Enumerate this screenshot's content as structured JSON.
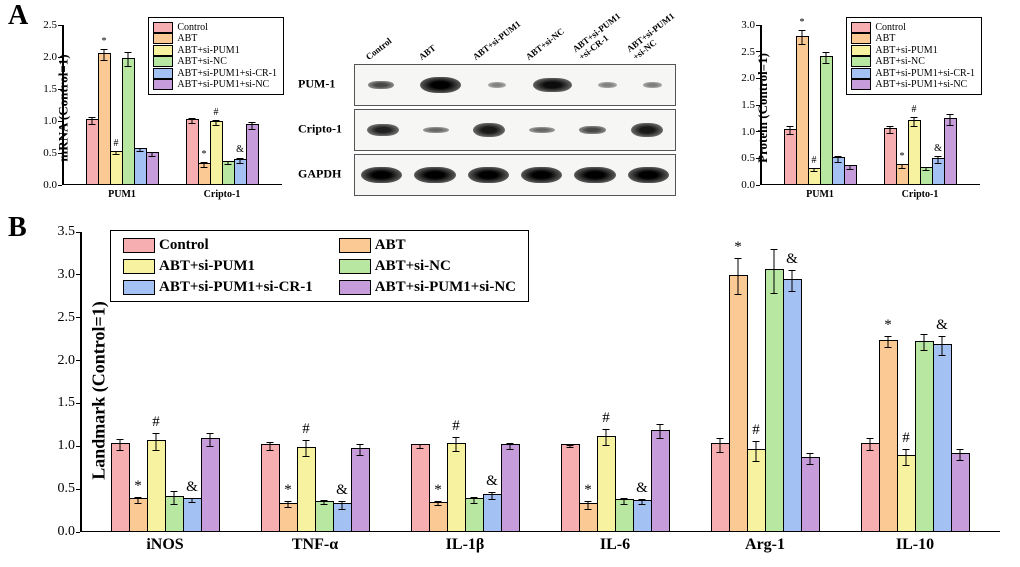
{
  "colors": {
    "control": "#f7aeb1",
    "abt": "#fbc993",
    "abt_si_pum1": "#f6f29f",
    "abt_si_nc": "#b7e7a0",
    "abt_si_pum1_si_cr1": "#a4c1f4",
    "abt_si_pum1_si_nc": "#c69cda",
    "axis": "#000000",
    "bg": "#ffffff"
  },
  "series_legend": {
    "control": "Control",
    "abt": "ABT",
    "abt_si_pum1": "ABT+si-PUM1",
    "abt_si_nc": "ABT+si-NC",
    "abt_si_pum1_si_cr1": "ABT+si-PUM1+si-CR-1",
    "abt_si_pum1_si_nc": "ABT+si-PUM1+si-NC"
  },
  "panelA": {
    "label": "A",
    "left_chart": {
      "y_axis_title": "mRNA (Control=1)",
      "ylim": [
        0,
        2.5
      ],
      "ytick_step": 0.5,
      "label_fontsize": 13,
      "tick_fontsize": 11,
      "groups": [
        {
          "name": "PUM1",
          "bars": [
            {
              "key": "control",
              "value": 1.0,
              "err": 0.07,
              "mark": ""
            },
            {
              "key": "abt",
              "value": 2.03,
              "err": 0.1,
              "mark": "*"
            },
            {
              "key": "abt_si_pum1",
              "value": 0.5,
              "err": 0.03,
              "mark": "#"
            },
            {
              "key": "abt_si_nc",
              "value": 1.96,
              "err": 0.12,
              "mark": ""
            },
            {
              "key": "abt_si_pum1_si_cr1",
              "value": 0.55,
              "err": 0.03,
              "mark": ""
            },
            {
              "key": "abt_si_pum1_si_nc",
              "value": 0.48,
              "err": 0.04,
              "mark": ""
            }
          ]
        },
        {
          "name": "Cripto-1",
          "bars": [
            {
              "key": "control",
              "value": 1.0,
              "err": 0.05,
              "mark": ""
            },
            {
              "key": "abt",
              "value": 0.31,
              "err": 0.05,
              "mark": "*"
            },
            {
              "key": "abt_si_pum1",
              "value": 0.97,
              "err": 0.05,
              "mark": "#"
            },
            {
              "key": "abt_si_nc",
              "value": 0.35,
              "err": 0.03,
              "mark": ""
            },
            {
              "key": "abt_si_pum1_si_cr1",
              "value": 0.38,
              "err": 0.05,
              "mark": "&"
            },
            {
              "key": "abt_si_pum1_si_nc",
              "value": 0.92,
              "err": 0.06,
              "mark": ""
            }
          ]
        }
      ]
    },
    "right_chart": {
      "y_axis_title": "Protein (Control=1)",
      "ylim": [
        0,
        3.0
      ],
      "ytick_step": 0.5,
      "label_fontsize": 13,
      "tick_fontsize": 11,
      "groups": [
        {
          "name": "PUM1",
          "bars": [
            {
              "key": "control",
              "value": 1.02,
              "err": 0.09,
              "mark": ""
            },
            {
              "key": "abt",
              "value": 2.76,
              "err": 0.14,
              "mark": "*"
            },
            {
              "key": "abt_si_pum1",
              "value": 0.28,
              "err": 0.04,
              "mark": "#"
            },
            {
              "key": "abt_si_nc",
              "value": 2.38,
              "err": 0.12,
              "mark": ""
            },
            {
              "key": "abt_si_pum1_si_cr1",
              "value": 0.48,
              "err": 0.07,
              "mark": ""
            },
            {
              "key": "abt_si_pum1_si_nc",
              "value": 0.33,
              "err": 0.04,
              "mark": ""
            }
          ]
        },
        {
          "name": "Cripto-1",
          "bars": [
            {
              "key": "control",
              "value": 1.03,
              "err": 0.08,
              "mark": ""
            },
            {
              "key": "abt",
              "value": 0.35,
              "err": 0.05,
              "mark": "*"
            },
            {
              "key": "abt_si_pum1",
              "value": 1.18,
              "err": 0.09,
              "mark": "#"
            },
            {
              "key": "abt_si_nc",
              "value": 0.3,
              "err": 0.03,
              "mark": ""
            },
            {
              "key": "abt_si_pum1_si_cr1",
              "value": 0.47,
              "err": 0.07,
              "mark": "&"
            },
            {
              "key": "abt_si_pum1_si_nc",
              "value": 1.22,
              "err": 0.11,
              "mark": ""
            }
          ]
        }
      ]
    },
    "western_blot": {
      "lanes": [
        "Control",
        "ABT",
        "ABT+si-PUM1",
        "ABT+si-NC",
        "ABT+si-PUM1\n+si-CR-1",
        "ABT+si-PUM1\n+si-NC"
      ],
      "rows": [
        {
          "name": "PUM-1",
          "intensities": [
            0.55,
            1.0,
            0.18,
            0.92,
            0.2,
            0.22
          ],
          "widths": [
            0.55,
            0.9,
            0.4,
            0.85,
            0.4,
            0.4
          ]
        },
        {
          "name": "Cripto-1",
          "intensities": [
            0.8,
            0.35,
            0.85,
            0.35,
            0.55,
            0.85
          ],
          "widths": [
            0.7,
            0.55,
            0.7,
            0.55,
            0.6,
            0.7
          ]
        },
        {
          "name": "GAPDH",
          "intensities": [
            1.0,
            1.0,
            1.0,
            1.0,
            1.0,
            1.0
          ],
          "widths": [
            0.9,
            0.9,
            0.9,
            0.9,
            0.9,
            0.9
          ]
        }
      ]
    }
  },
  "panelB": {
    "label": "B",
    "y_axis_title": "Landmark (Control=1)",
    "ylim": [
      0,
      3.5
    ],
    "ytick_step": 0.5,
    "label_fontsize": 18,
    "tick_fontsize": 14,
    "groups": [
      {
        "name": "iNOS",
        "bars": [
          {
            "key": "control",
            "value": 1.01,
            "err": 0.07,
            "mark": ""
          },
          {
            "key": "abt",
            "value": 0.37,
            "err": 0.04,
            "mark": "*"
          },
          {
            "key": "abt_si_pum1",
            "value": 1.05,
            "err": 0.1,
            "mark": "#"
          },
          {
            "key": "abt_si_nc",
            "value": 0.4,
            "err": 0.08,
            "mark": ""
          },
          {
            "key": "abt_si_pum1_si_cr1",
            "value": 0.37,
            "err": 0.03,
            "mark": "&"
          },
          {
            "key": "abt_si_pum1_si_nc",
            "value": 1.07,
            "err": 0.08,
            "mark": ""
          }
        ]
      },
      {
        "name": "TNF-α",
        "bars": [
          {
            "key": "control",
            "value": 1.0,
            "err": 0.05,
            "mark": ""
          },
          {
            "key": "abt",
            "value": 0.32,
            "err": 0.04,
            "mark": "*"
          },
          {
            "key": "abt_si_pum1",
            "value": 0.97,
            "err": 0.1,
            "mark": "#"
          },
          {
            "key": "abt_si_nc",
            "value": 0.34,
            "err": 0.03,
            "mark": ""
          },
          {
            "key": "abt_si_pum1_si_cr1",
            "value": 0.31,
            "err": 0.05,
            "mark": "&"
          },
          {
            "key": "abt_si_pum1_si_nc",
            "value": 0.96,
            "err": 0.07,
            "mark": ""
          }
        ]
      },
      {
        "name": "IL-1β",
        "bars": [
          {
            "key": "control",
            "value": 1.0,
            "err": 0.03,
            "mark": ""
          },
          {
            "key": "abt",
            "value": 0.33,
            "err": 0.03,
            "mark": "*"
          },
          {
            "key": "abt_si_pum1",
            "value": 1.02,
            "err": 0.09,
            "mark": "#"
          },
          {
            "key": "abt_si_nc",
            "value": 0.37,
            "err": 0.04,
            "mark": ""
          },
          {
            "key": "abt_si_pum1_si_cr1",
            "value": 0.42,
            "err": 0.05,
            "mark": "&"
          },
          {
            "key": "abt_si_pum1_si_nc",
            "value": 1.0,
            "err": 0.04,
            "mark": ""
          }
        ]
      },
      {
        "name": "IL-6",
        "bars": [
          {
            "key": "control",
            "value": 1.0,
            "err": 0.02,
            "mark": ""
          },
          {
            "key": "abt",
            "value": 0.31,
            "err": 0.05,
            "mark": "*"
          },
          {
            "key": "abt_si_pum1",
            "value": 1.1,
            "err": 0.1,
            "mark": "#"
          },
          {
            "key": "abt_si_nc",
            "value": 0.36,
            "err": 0.04,
            "mark": ""
          },
          {
            "key": "abt_si_pum1_si_cr1",
            "value": 0.35,
            "err": 0.04,
            "mark": "&"
          },
          {
            "key": "abt_si_pum1_si_nc",
            "value": 1.17,
            "err": 0.09,
            "mark": ""
          }
        ]
      },
      {
        "name": "Arg-1",
        "bars": [
          {
            "key": "control",
            "value": 1.01,
            "err": 0.09,
            "mark": ""
          },
          {
            "key": "abt",
            "value": 2.98,
            "err": 0.22,
            "mark": "*"
          },
          {
            "key": "abt_si_pum1",
            "value": 0.94,
            "err": 0.12,
            "mark": "#"
          },
          {
            "key": "abt_si_nc",
            "value": 3.04,
            "err": 0.26,
            "mark": ""
          },
          {
            "key": "abt_si_pum1_si_cr1",
            "value": 2.93,
            "err": 0.13,
            "mark": "&"
          },
          {
            "key": "abt_si_pum1_si_nc",
            "value": 0.85,
            "err": 0.07,
            "mark": ""
          }
        ]
      },
      {
        "name": "IL-10",
        "bars": [
          {
            "key": "control",
            "value": 1.02,
            "err": 0.08,
            "mark": ""
          },
          {
            "key": "abt",
            "value": 2.22,
            "err": 0.07,
            "mark": "*"
          },
          {
            "key": "abt_si_pum1",
            "value": 0.87,
            "err": 0.1,
            "mark": "#"
          },
          {
            "key": "abt_si_nc",
            "value": 2.21,
            "err": 0.1,
            "mark": ""
          },
          {
            "key": "abt_si_pum1_si_cr1",
            "value": 2.17,
            "err": 0.12,
            "mark": "&"
          },
          {
            "key": "abt_si_pum1_si_nc",
            "value": 0.9,
            "err": 0.07,
            "mark": ""
          }
        ]
      }
    ]
  }
}
